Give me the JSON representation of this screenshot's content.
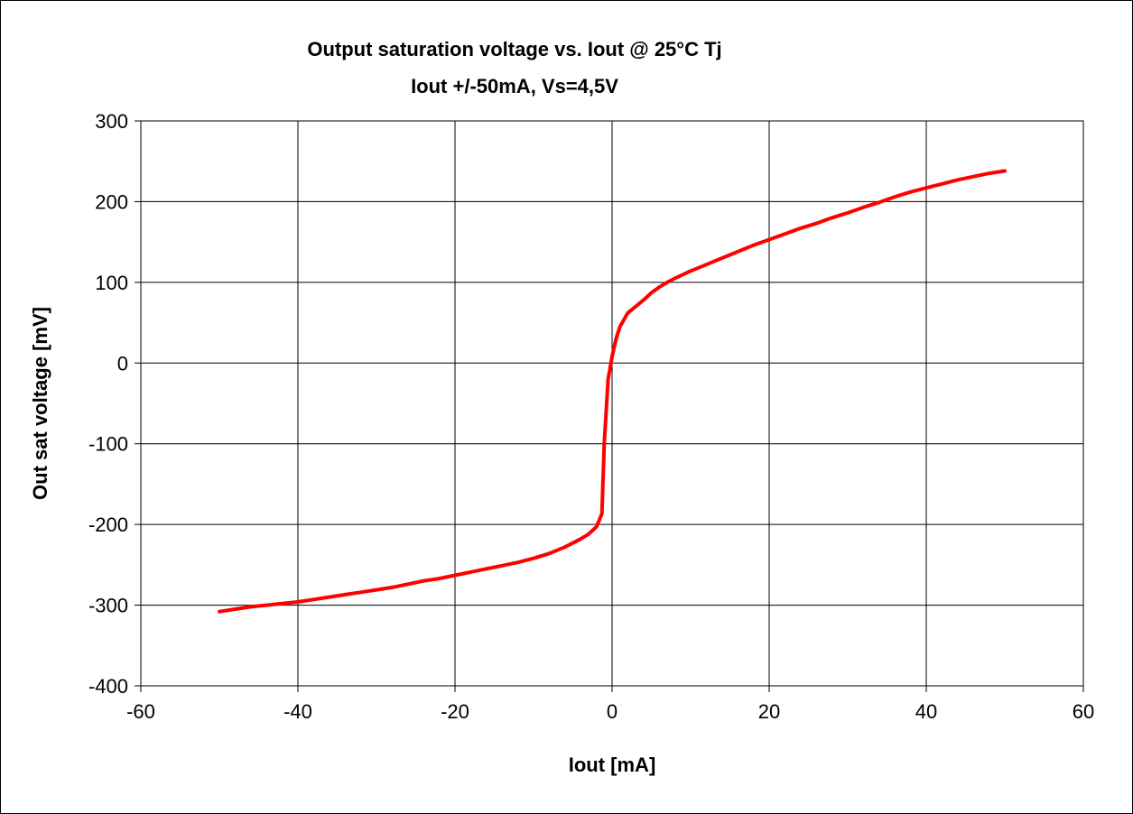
{
  "chart_data": {
    "type": "line",
    "title": "Output saturation voltage vs. Iout @ 25°C Tj",
    "subtitle": "Iout +/-50mA, Vs=4,5V",
    "xlabel": "Iout [mA]",
    "ylabel": "Out sat voltage [mV]",
    "xlim": [
      -60,
      60
    ],
    "ylim": [
      -400,
      300
    ],
    "x_ticks": [
      -60,
      -40,
      -20,
      0,
      20,
      40,
      60
    ],
    "y_ticks": [
      300,
      200,
      100,
      0,
      -100,
      -200,
      -300,
      -400
    ],
    "x_tick_labels": [
      "-60",
      "-40",
      "-20",
      "0",
      "20",
      "40",
      "60"
    ],
    "y_tick_labels": [
      "300",
      "200",
      "100",
      "0",
      "-100",
      "-200",
      "-300",
      "-400"
    ],
    "grid": true,
    "legend": "none",
    "series": [
      {
        "color": "#ff0000",
        "x": [
          -50,
          -48,
          -46,
          -44,
          -42,
          -40,
          -38,
          -36,
          -34,
          -32,
          -30,
          -28,
          -26,
          -24,
          -22,
          -20,
          -18,
          -16,
          -14,
          -12,
          -10,
          -8,
          -6,
          -4,
          -3,
          -2,
          -1.3,
          -1,
          -0.5,
          0,
          0.5,
          1,
          2,
          3,
          4,
          5,
          6,
          7,
          8,
          10,
          12,
          14,
          16,
          18,
          20,
          22,
          24,
          26,
          28,
          30,
          32,
          34,
          36,
          38,
          40,
          42,
          44,
          46,
          48,
          50
        ],
        "y": [
          -308,
          -305,
          -302,
          -300,
          -298,
          -296,
          -293,
          -290,
          -287,
          -284,
          -281,
          -278,
          -274,
          -270,
          -267,
          -263,
          -259,
          -255,
          -251,
          -247,
          -242,
          -236,
          -228,
          -218,
          -212,
          -203,
          -187,
          -100,
          -20,
          8,
          30,
          45,
          62,
          70,
          78,
          87,
          94,
          100,
          105,
          114,
          122,
          130,
          138,
          146,
          153,
          160,
          167,
          173,
          180,
          186,
          193,
          199,
          206,
          212,
          217,
          222,
          227,
          231,
          235,
          238
        ]
      }
    ]
  }
}
